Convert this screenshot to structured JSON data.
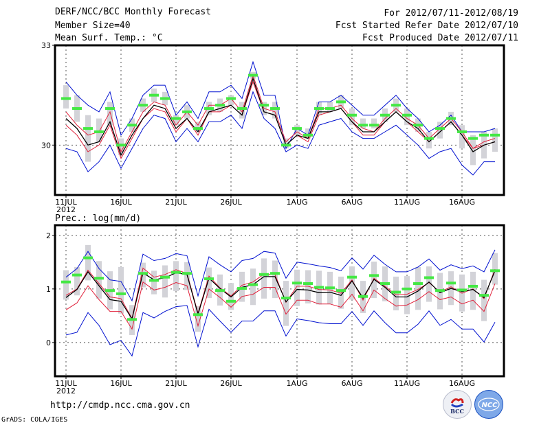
{
  "header": {
    "title": "DERF/NCC/BCC Monthly Forecast",
    "member_size": "Member Size=40",
    "variable": "Mean Surf. Temp.: °C",
    "period": "For 2012/07/11-2012/08/19",
    "started": "Fcst Started Refer Date 2012/07/10",
    "produced": "Fcst Produced Date 2012/07/11"
  },
  "footer": {
    "url": "http://cmdp.ncc.cma.gov.cn",
    "credit": "GrADS: COLA/IGES",
    "logo_left": "BCC",
    "logo_right": "NCC"
  },
  "colors": {
    "obs": "#44e844",
    "box": "#d3d3d8",
    "mean": "#000000",
    "quartile": "#e0203a",
    "envelope": "#0010d0",
    "grid": "#555555"
  },
  "chart_data": [
    {
      "type": "line",
      "title": "Mean Surf. Temp.: °C",
      "xlabel": "",
      "ylabel": "°C",
      "ylim": [
        28.5,
        33
      ],
      "yticks": [
        30,
        33
      ],
      "ytick_labels": [
        "30",
        "33"
      ],
      "xtick_labels": [
        "11JUL",
        "16JUL",
        "21JUL",
        "26JUL",
        "1AUG",
        "6AUG",
        "11AUG",
        "16AUG"
      ],
      "xtick_index": [
        0,
        5,
        10,
        15,
        21,
        26,
        31,
        36
      ],
      "xtick_year": "2012",
      "grid": true,
      "start_date": "2012-07-11",
      "series": [
        {
          "name": "observed",
          "values": [
            31.4,
            31.1,
            30.5,
            30.4,
            31.1,
            30.0,
            30.6,
            31.2,
            31.5,
            31.4,
            30.8,
            31.0,
            30.5,
            31.1,
            31.2,
            31.4,
            31.1,
            32.1,
            31.2,
            31.1,
            30.0,
            30.5,
            30.3,
            31.1,
            31.1,
            31.3,
            30.9,
            30.6,
            30.6,
            30.9,
            31.2,
            30.9,
            30.6,
            30.2,
            30.5,
            30.8,
            30.4,
            30.2,
            30.3,
            30.3
          ]
        },
        {
          "name": "max",
          "values": [
            31.9,
            31.5,
            31.2,
            31.0,
            31.6,
            30.3,
            30.8,
            31.5,
            31.8,
            31.8,
            30.9,
            31.3,
            30.8,
            31.6,
            31.6,
            31.8,
            31.4,
            32.5,
            31.5,
            31.5,
            29.9,
            30.5,
            30.3,
            31.3,
            31.3,
            31.5,
            31.2,
            30.9,
            30.9,
            31.2,
            31.5,
            31.1,
            30.8,
            30.4,
            30.6,
            30.9,
            30.4,
            30.4,
            30.4,
            30.5
          ]
        },
        {
          "name": "q3",
          "values": [
            31.0,
            30.6,
            30.3,
            30.4,
            31.0,
            29.8,
            30.4,
            31.0,
            31.3,
            31.2,
            30.6,
            31.0,
            30.6,
            31.2,
            31.2,
            31.4,
            31.0,
            32.1,
            31.1,
            31.0,
            30.1,
            30.4,
            30.2,
            31.1,
            31.1,
            31.2,
            30.8,
            30.5,
            30.4,
            30.8,
            31.1,
            30.8,
            30.6,
            30.2,
            30.5,
            30.8,
            30.4,
            29.9,
            30.1,
            30.2
          ]
        },
        {
          "name": "mean",
          "values": [
            30.8,
            30.5,
            30.0,
            30.1,
            30.7,
            29.7,
            30.3,
            30.8,
            31.2,
            31.1,
            30.5,
            30.8,
            30.4,
            31.0,
            31.1,
            31.2,
            30.9,
            32.0,
            31.0,
            30.9,
            30.0,
            30.3,
            30.2,
            31.0,
            31.0,
            31.1,
            30.7,
            30.4,
            30.4,
            30.7,
            31.0,
            30.7,
            30.5,
            30.1,
            30.4,
            30.7,
            30.3,
            29.8,
            30.0,
            30.1
          ]
        },
        {
          "name": "q1",
          "values": [
            30.6,
            30.3,
            29.8,
            30.0,
            30.6,
            29.6,
            30.2,
            30.8,
            31.1,
            31.0,
            30.4,
            30.8,
            30.3,
            31.0,
            31.0,
            31.2,
            30.9,
            31.9,
            31.0,
            30.9,
            30.0,
            30.3,
            30.1,
            30.9,
            31.0,
            31.1,
            30.7,
            30.3,
            30.3,
            30.7,
            31.0,
            30.7,
            30.4,
            30.1,
            30.4,
            30.7,
            30.3,
            29.9,
            30.0,
            30.1
          ]
        },
        {
          "name": "min",
          "values": [
            29.9,
            29.8,
            29.2,
            29.5,
            30.0,
            29.3,
            29.9,
            30.5,
            30.9,
            30.8,
            30.1,
            30.5,
            30.1,
            30.7,
            30.7,
            30.9,
            30.5,
            31.6,
            30.8,
            30.5,
            29.8,
            30.0,
            29.9,
            30.6,
            30.7,
            30.8,
            30.4,
            30.2,
            30.2,
            30.4,
            30.6,
            30.3,
            30.0,
            29.6,
            29.8,
            29.9,
            29.4,
            29.1,
            29.5,
            29.5
          ]
        },
        {
          "name": "box_high",
          "values": [
            31.8,
            31.5,
            30.9,
            30.8,
            31.3,
            30.2,
            30.8,
            31.4,
            31.7,
            31.6,
            30.9,
            31.2,
            30.7,
            31.3,
            31.4,
            31.5,
            31.3,
            32.2,
            31.3,
            31.3,
            30.2,
            30.6,
            30.5,
            31.3,
            31.3,
            31.5,
            31.1,
            30.8,
            30.8,
            31.1,
            31.4,
            31.1,
            30.8,
            30.4,
            30.7,
            31.0,
            30.6,
            30.3,
            30.4,
            30.5
          ]
        },
        {
          "name": "box_low",
          "values": [
            31.1,
            30.7,
            29.5,
            30.1,
            30.6,
            29.7,
            30.4,
            31.0,
            31.3,
            31.2,
            30.6,
            30.8,
            30.4,
            30.9,
            31.0,
            31.2,
            30.8,
            32.0,
            30.9,
            30.8,
            29.9,
            30.3,
            30.2,
            30.9,
            31.0,
            31.1,
            30.6,
            30.5,
            30.5,
            30.7,
            31.0,
            30.6,
            30.4,
            29.9,
            30.2,
            30.6,
            29.9,
            29.4,
            29.6,
            29.8
          ]
        }
      ]
    },
    {
      "type": "line",
      "title": "Prec.: log(mm/d)",
      "xlabel": "",
      "ylabel": "log(mm/d)",
      "ylim": [
        -0.63,
        2.19
      ],
      "yticks": [
        0,
        1,
        2
      ],
      "ytick_labels": [
        "0",
        "1",
        "2"
      ],
      "xtick_labels": [
        "11JUL",
        "16JUL",
        "21JUL",
        "26JUL",
        "1AUG",
        "6AUG",
        "11AUG",
        "16AUG"
      ],
      "xtick_index": [
        0,
        5,
        10,
        15,
        21,
        26,
        31,
        36
      ],
      "xtick_year": "2012",
      "grid": true,
      "start_date": "2012-07-11",
      "series": [
        {
          "name": "observed",
          "values": [
            1.13,
            1.26,
            1.58,
            1.2,
            0.97,
            0.91,
            0.43,
            1.29,
            1.16,
            1.22,
            1.31,
            1.29,
            0.52,
            1.19,
            0.97,
            0.77,
            1.01,
            1.08,
            1.27,
            1.29,
            0.83,
            1.11,
            1.1,
            1.03,
            1.02,
            0.97,
            1.22,
            0.86,
            1.25,
            1.1,
            0.94,
            1.0,
            1.1,
            1.21,
            0.97,
            1.11,
            0.98,
            1.05,
            0.88,
            1.34
          ]
        },
        {
          "name": "max",
          "values": [
            1.22,
            1.38,
            1.7,
            1.38,
            1.17,
            1.14,
            0.78,
            1.65,
            1.53,
            1.57,
            1.66,
            1.62,
            0.87,
            1.6,
            1.45,
            1.32,
            1.53,
            1.57,
            1.7,
            1.67,
            1.2,
            1.5,
            1.47,
            1.43,
            1.4,
            1.34,
            1.58,
            1.37,
            1.63,
            1.46,
            1.32,
            1.32,
            1.41,
            1.56,
            1.35,
            1.45,
            1.38,
            1.43,
            1.32,
            1.73
          ]
        },
        {
          "name": "q3",
          "values": [
            0.88,
            1.0,
            1.35,
            1.1,
            0.85,
            0.82,
            0.45,
            1.39,
            1.22,
            1.27,
            1.36,
            1.29,
            0.55,
            1.24,
            1.02,
            0.87,
            1.07,
            1.13,
            1.28,
            1.27,
            0.75,
            1.05,
            1.05,
            0.99,
            0.98,
            0.92,
            1.17,
            0.79,
            1.2,
            1.05,
            0.89,
            0.9,
            0.99,
            1.12,
            0.94,
            1.04,
            0.92,
            1.0,
            0.82,
            1.37
          ]
        },
        {
          "name": "mean",
          "values": [
            0.84,
            0.99,
            1.32,
            1.06,
            0.8,
            0.77,
            0.44,
            1.3,
            1.17,
            1.21,
            1.3,
            1.27,
            0.53,
            1.2,
            1.01,
            0.85,
            1.03,
            1.08,
            1.23,
            1.23,
            0.76,
            0.99,
            0.98,
            0.93,
            0.94,
            0.88,
            1.15,
            0.83,
            1.18,
            1.03,
            0.85,
            0.85,
            0.96,
            1.13,
            0.93,
            1.01,
            0.95,
            0.99,
            0.84,
            1.34
          ]
        },
        {
          "name": "q1",
          "values": [
            0.61,
            0.74,
            1.06,
            0.8,
            0.58,
            0.58,
            0.25,
            1.13,
            0.98,
            1.03,
            1.12,
            1.06,
            0.31,
            1.0,
            0.84,
            0.66,
            0.86,
            0.9,
            1.03,
            1.03,
            0.53,
            0.79,
            0.79,
            0.72,
            0.72,
            0.66,
            0.9,
            0.59,
            0.98,
            0.82,
            0.68,
            0.7,
            0.8,
            0.95,
            0.8,
            0.85,
            0.72,
            0.79,
            0.58,
            1.1
          ]
        },
        {
          "name": "min",
          "values": [
            0.14,
            0.19,
            0.56,
            0.32,
            -0.04,
            0.04,
            -0.25,
            0.56,
            0.46,
            0.58,
            0.67,
            0.69,
            -0.08,
            0.62,
            0.4,
            0.19,
            0.4,
            0.4,
            0.59,
            0.59,
            0.12,
            0.44,
            0.41,
            0.37,
            0.35,
            0.35,
            0.58,
            0.32,
            0.59,
            0.37,
            0.18,
            0.18,
            0.34,
            0.59,
            0.32,
            0.43,
            0.25,
            0.25,
            0.01,
            0.38
          ]
        },
        {
          "name": "box_high",
          "values": [
            1.35,
            1.41,
            1.82,
            1.52,
            1.33,
            1.41,
            0.7,
            1.49,
            1.34,
            1.44,
            1.52,
            1.5,
            0.68,
            1.4,
            1.27,
            1.11,
            1.32,
            1.38,
            1.57,
            1.53,
            1.15,
            1.36,
            1.35,
            1.34,
            1.32,
            1.23,
            1.42,
            1.15,
            1.51,
            1.42,
            1.23,
            1.24,
            1.41,
            1.42,
            1.3,
            1.33,
            1.27,
            1.32,
            1.17,
            1.67
          ]
        },
        {
          "name": "box_low",
          "values": [
            0.8,
            0.88,
            1.16,
            0.82,
            0.62,
            0.54,
            0.14,
            1.03,
            0.9,
            0.84,
            0.96,
            0.98,
            0.2,
            0.83,
            0.69,
            0.61,
            0.76,
            0.7,
            0.82,
            0.83,
            0.31,
            0.68,
            0.73,
            0.71,
            0.72,
            0.63,
            0.8,
            0.55,
            0.83,
            0.77,
            0.6,
            0.53,
            0.61,
            0.76,
            0.62,
            0.7,
            0.58,
            0.61,
            0.4,
            1.08
          ]
        }
      ]
    }
  ]
}
